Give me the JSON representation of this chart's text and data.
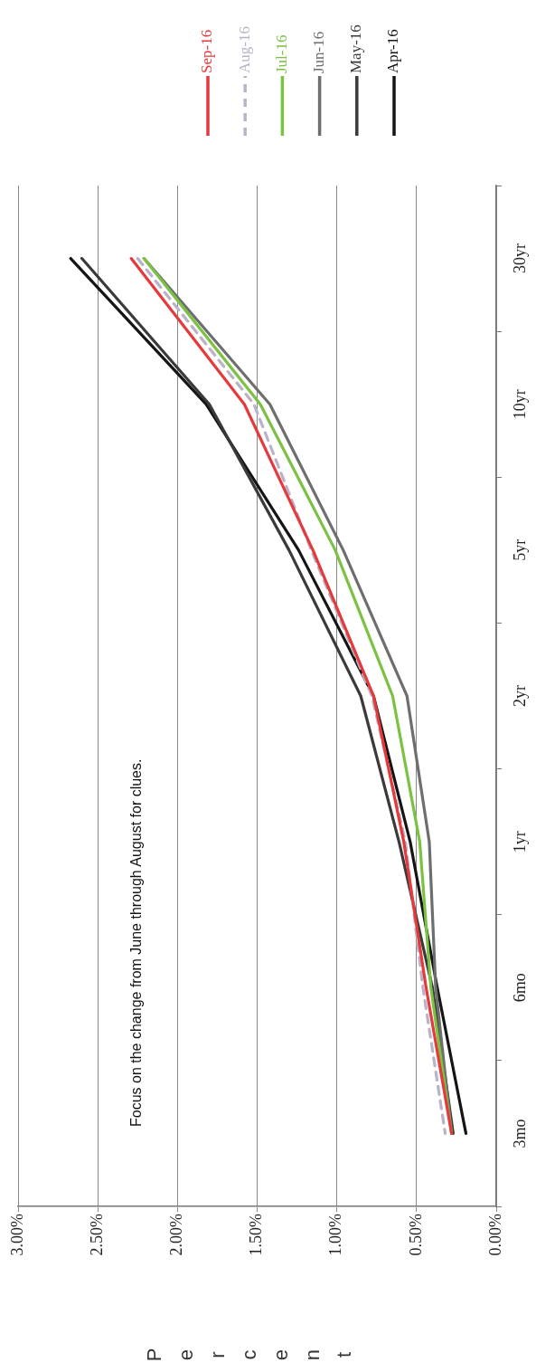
{
  "chart_data": {
    "type": "line",
    "orientation": "horizontal",
    "ylabel": "Percent",
    "annotations": [
      "Focus on the change from June through August for clues."
    ],
    "categories": [
      "30yr",
      "10yr",
      "5yr",
      "2yr",
      "1yr",
      "6mo",
      "3mo"
    ],
    "series": [
      {
        "name": "Sep-16",
        "color": "#e53a3c",
        "values": [
          2.29,
          1.58,
          1.15,
          0.77,
          0.58,
          0.44,
          0.28
        ]
      },
      {
        "name": "Aug-16",
        "color": "#bab2c8",
        "line_style": "dashed",
        "values": [
          2.25,
          1.52,
          1.16,
          0.78,
          0.57,
          0.46,
          0.32
        ]
      },
      {
        "name": "Jul-16",
        "color": "#7cc242",
        "values": [
          2.21,
          1.48,
          1.01,
          0.65,
          0.48,
          0.41,
          0.28
        ]
      },
      {
        "name": "Jun-16",
        "color": "#6e6e6e",
        "values": [
          2.21,
          1.42,
          0.96,
          0.56,
          0.42,
          0.38,
          0.28
        ]
      },
      {
        "name": "May-16",
        "color": "#3a3a3a",
        "values": [
          2.6,
          1.8,
          1.3,
          0.85,
          0.61,
          0.4,
          0.27
        ]
      },
      {
        "name": "Apr-16",
        "color": "#151515",
        "values": [
          2.67,
          1.82,
          1.24,
          0.77,
          0.54,
          0.37,
          0.19
        ]
      }
    ],
    "xlim": [
      3,
      0
    ],
    "xticks": [
      {
        "value": 3,
        "label": "3.00%"
      },
      {
        "value": 2.5,
        "label": "2.50%"
      },
      {
        "value": 2,
        "label": "2.00%"
      },
      {
        "value": 1.5,
        "label": "1.50%"
      },
      {
        "value": 1,
        "label": "1.00%"
      },
      {
        "value": 0.5,
        "label": "0.50%"
      },
      {
        "value": 0,
        "label": "0.00%"
      }
    ],
    "grid": "x",
    "legend": "right",
    "marker": "none",
    "line_style": "solid"
  }
}
